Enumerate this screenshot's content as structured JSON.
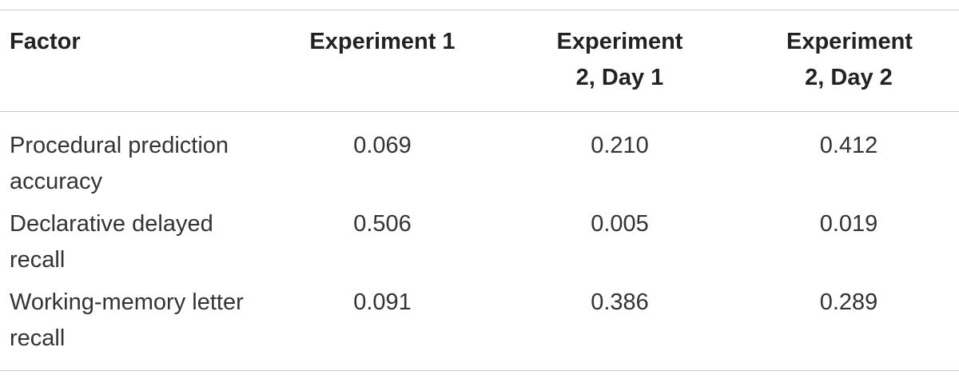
{
  "table": {
    "header": [
      "Factor",
      "Experiment 1",
      "Experiment 2, Day 1",
      "Experiment 2, Day 2"
    ],
    "rows": [
      [
        "Procedural prediction accuracy",
        "0.069",
        "0.210",
        "0.412"
      ],
      [
        "Declarative delayed recall",
        "0.506",
        "0.005",
        "0.019"
      ],
      [
        "Working-memory letter recall",
        "0.091",
        "0.386",
        "0.289"
      ]
    ]
  }
}
